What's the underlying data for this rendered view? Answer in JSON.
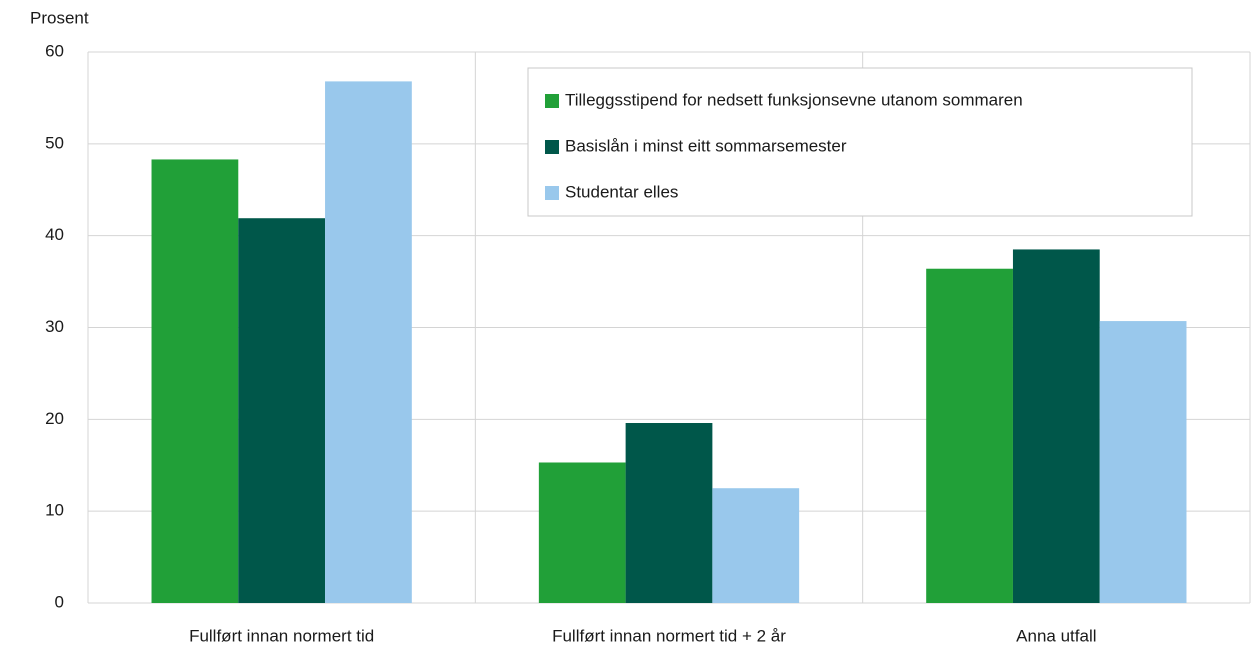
{
  "chart_data": {
    "type": "bar",
    "y_label": "Prosent",
    "categories": [
      "Fullført innan normert tid",
      "Fullført innan normert tid + 2 år",
      "Anna utfall"
    ],
    "series": [
      {
        "name": "Tilleggsstipend for nedsett funksjonsevne utanom sommaren",
        "color": "#21a038",
        "values": [
          48.3,
          15.3,
          36.4
        ]
      },
      {
        "name": "Basislån i minst eitt sommarsemester",
        "color": "#00574a",
        "values": [
          41.9,
          19.6,
          38.5
        ]
      },
      {
        "name": "Studentar elles",
        "color": "#99c8ec",
        "values": [
          56.8,
          12.5,
          30.7
        ]
      }
    ],
    "ylim": [
      0,
      60
    ],
    "yticks": [
      0,
      10,
      20,
      30,
      40,
      50,
      60
    ],
    "grid": true,
    "legend": "upper right"
  }
}
